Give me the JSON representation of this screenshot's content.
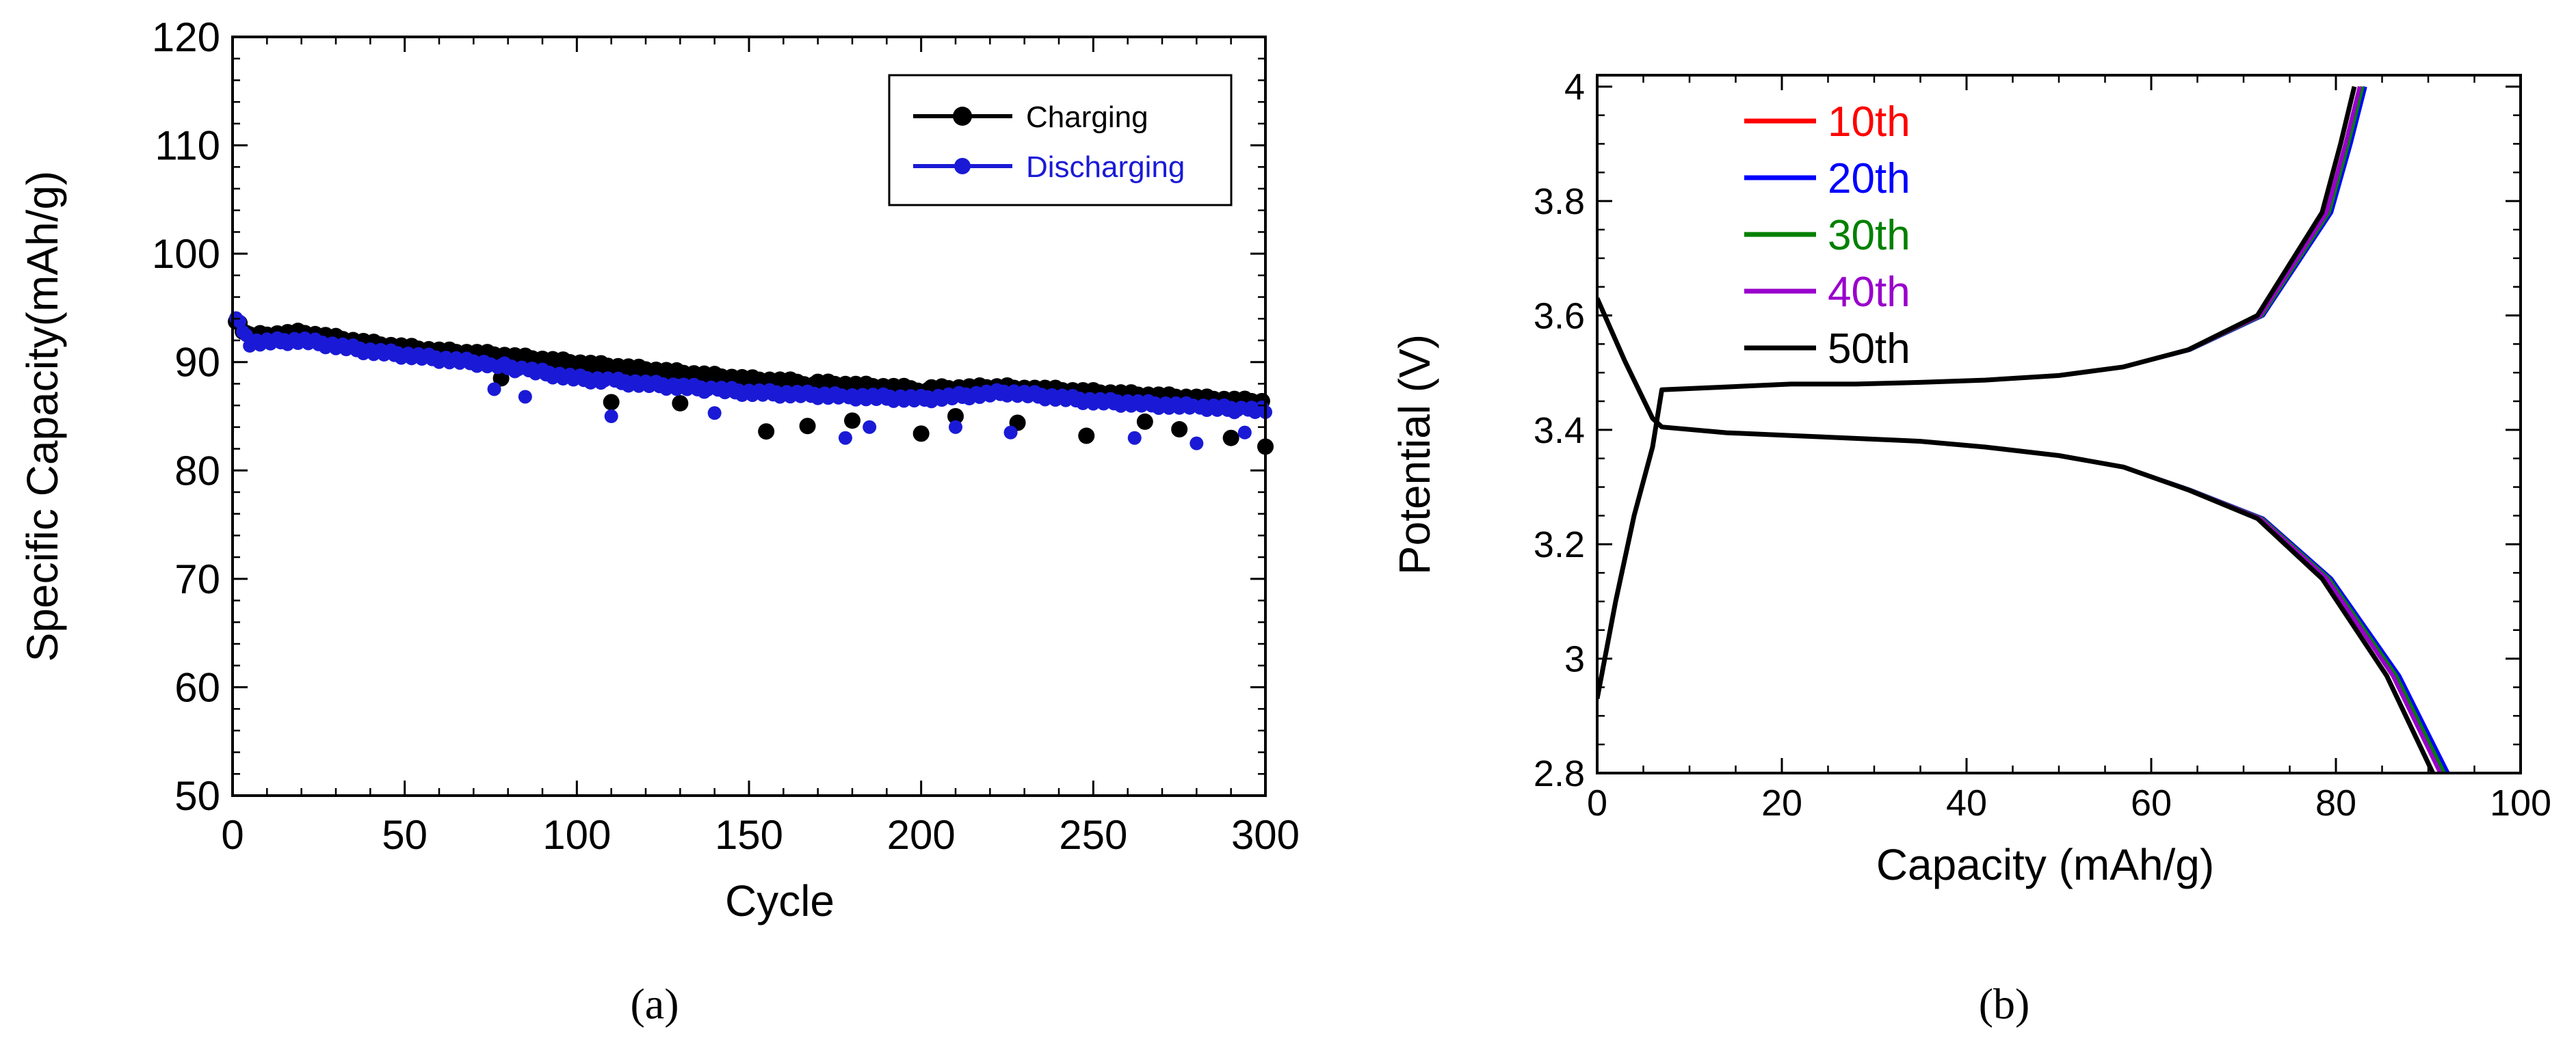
{
  "colors": {
    "charging": "#000000",
    "discharging": "#1a1ad6",
    "c10": "#ff0000",
    "c20": "#0000ff",
    "c30": "#008000",
    "c40": "#9900cc",
    "c50": "#000000"
  },
  "panel_a": {
    "label": "(a)"
  },
  "panel_b": {
    "label": "(b)"
  },
  "chart_data": [
    {
      "type": "scatter",
      "panel": "a",
      "title": "",
      "xlabel": "Cycle",
      "ylabel": "Specific Capacity(mAh/g)",
      "xlim": [
        0,
        300
      ],
      "ylim": [
        50,
        120
      ],
      "xticks": [
        0,
        50,
        100,
        150,
        200,
        250,
        300
      ],
      "yticks": [
        50,
        60,
        70,
        80,
        90,
        100,
        110,
        120
      ],
      "legend": [
        "Charging",
        "Discharging"
      ],
      "legend_position": "top-right",
      "grid": false,
      "series": [
        {
          "name": "Charging",
          "marker": "circle",
          "anchors": [
            [
              1,
              93.8
            ],
            [
              5,
              92.3
            ],
            [
              20,
              92.6
            ],
            [
              40,
              91.6
            ],
            [
              60,
              90.9
            ],
            [
              75,
              90.6
            ],
            [
              100,
              89.8
            ],
            [
              150,
              88.3
            ],
            [
              200,
              87.4
            ],
            [
              225,
              87.6
            ],
            [
              250,
              87.1
            ],
            [
              300,
              86.2
            ]
          ],
          "dips": [
            [
              78,
              88.5
            ],
            [
              110,
              86.3
            ],
            [
              130,
              86.2
            ],
            [
              155,
              83.6
            ],
            [
              167,
              84.1
            ],
            [
              180,
              84.6
            ],
            [
              200,
              83.4
            ],
            [
              210,
              85.0
            ],
            [
              228,
              84.4
            ],
            [
              248,
              83.2
            ],
            [
              265,
              84.5
            ],
            [
              275,
              83.8
            ],
            [
              290,
              83.0
            ],
            [
              300,
              82.2
            ]
          ]
        },
        {
          "name": "Discharging",
          "marker": "circle",
          "anchors": [
            [
              1,
              94.0
            ],
            [
              5,
              91.8
            ],
            [
              20,
              92.0
            ],
            [
              40,
              91.0
            ],
            [
              60,
              90.3
            ],
            [
              75,
              89.8
            ],
            [
              100,
              88.5
            ],
            [
              150,
              87.2
            ],
            [
              200,
              86.6
            ],
            [
              225,
              87.2
            ],
            [
              250,
              86.4
            ],
            [
              300,
              85.5
            ]
          ],
          "dips": [
            [
              76,
              87.5
            ],
            [
              85,
              86.8
            ],
            [
              110,
              85.0
            ],
            [
              140,
              85.3
            ],
            [
              178,
              83.0
            ],
            [
              185,
              84.0
            ],
            [
              210,
              84.0
            ],
            [
              226,
              83.5
            ],
            [
              262,
              83.0
            ],
            [
              280,
              82.5
            ],
            [
              294,
              83.5
            ]
          ]
        }
      ]
    },
    {
      "type": "line",
      "panel": "b",
      "title": "",
      "xlabel": "Capacity (mAh/g)",
      "ylabel": "Potential (V)",
      "xlim": [
        0,
        100
      ],
      "ylim": [
        2.8,
        4.02
      ],
      "xticks": [
        0,
        20,
        40,
        60,
        80,
        100
      ],
      "yticks": [
        2.8,
        3,
        3.2,
        3.4,
        3.6,
        3.8,
        4
      ],
      "ytick_labels": [
        "2.8",
        "3",
        "3.2",
        "3.4",
        "3.6",
        "3.8",
        "4"
      ],
      "legend": [
        "10th",
        "20th",
        "30th",
        "40th",
        "50th"
      ],
      "legend_position": "top-left",
      "grid": false,
      "base_curves": {
        "charge": [
          [
            0,
            2.93
          ],
          [
            2,
            3.1
          ],
          [
            4,
            3.25
          ],
          [
            6,
            3.37
          ],
          [
            7,
            3.47
          ],
          [
            14,
            3.475
          ],
          [
            21,
            3.48
          ],
          [
            28,
            3.48
          ],
          [
            35,
            3.483
          ],
          [
            42,
            3.487
          ],
          [
            50,
            3.495
          ],
          [
            57,
            3.51
          ],
          [
            64,
            3.54
          ],
          [
            71.5,
            3.6
          ],
          [
            78.5,
            3.78
          ],
          [
            80.5,
            3.9
          ],
          [
            82,
            4.0
          ]
        ],
        "discharge": [
          [
            0,
            3.63
          ],
          [
            3,
            3.52
          ],
          [
            6,
            3.42
          ],
          [
            7,
            3.405
          ],
          [
            14,
            3.395
          ],
          [
            21,
            3.39
          ],
          [
            28,
            3.385
          ],
          [
            35,
            3.38
          ],
          [
            42,
            3.37
          ],
          [
            50,
            3.355
          ],
          [
            57,
            3.335
          ],
          [
            64,
            3.295
          ],
          [
            71.5,
            3.245
          ],
          [
            78.5,
            3.14
          ],
          [
            85.5,
            2.97
          ],
          [
            90.5,
            2.8
          ]
        ]
      },
      "series": [
        {
          "name": "10th",
          "cap_shift": 0.8
        },
        {
          "name": "20th",
          "cap_shift": 1.6
        },
        {
          "name": "30th",
          "cap_shift": 1.2
        },
        {
          "name": "40th",
          "cap_shift": 0.8
        },
        {
          "name": "50th",
          "cap_shift": 0.0
        }
      ]
    }
  ]
}
